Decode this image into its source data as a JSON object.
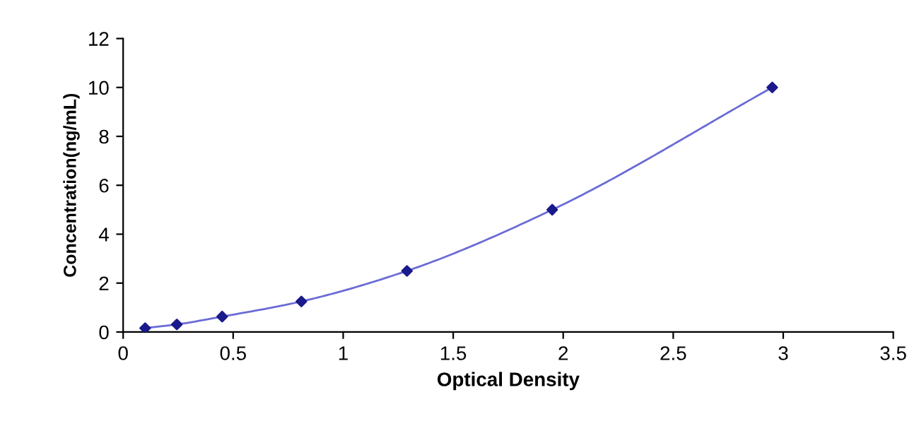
{
  "chart_data": {
    "type": "scatter",
    "xlabel": "Optical Density",
    "ylabel": "Concentration(ng/mL)",
    "xlim": [
      0,
      3.5
    ],
    "xticks": [
      0,
      0.5,
      1,
      1.5,
      2,
      2.5,
      3,
      3.5
    ],
    "ylim": [
      0,
      12
    ],
    "yticks": [
      0,
      2,
      4,
      6,
      8,
      10,
      12
    ],
    "grid": false,
    "legend": false,
    "series": [
      {
        "type": "line",
        "color": "#6b6bd6",
        "marker": "none",
        "x": [
          0.1,
          0.244,
          0.45,
          0.81,
          1.29,
          1.95,
          2.95
        ],
        "values": [
          0.16,
          0.31,
          0.63,
          1.25,
          2.5,
          5,
          10
        ]
      },
      {
        "color": "#1a1a8c",
        "marker": "diamond",
        "x": [
          0.1,
          0.244,
          0.45,
          0.81,
          1.29,
          1.95,
          2.95
        ],
        "values": [
          0.16,
          0.31,
          0.63,
          1.25,
          2.5,
          5,
          10
        ]
      }
    ]
  }
}
